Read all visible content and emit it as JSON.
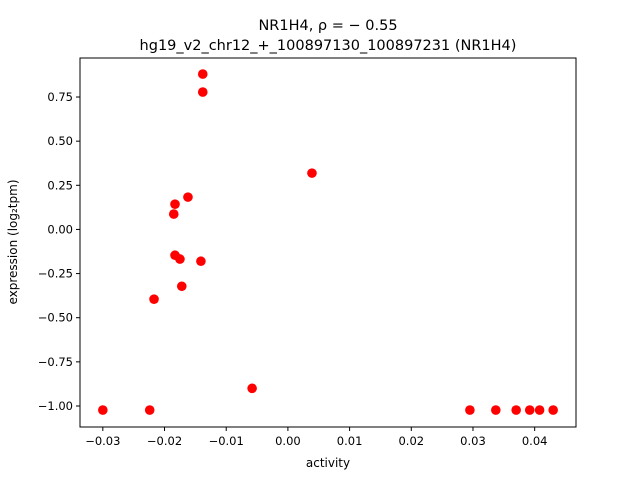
{
  "chart_data": {
    "type": "scatter",
    "title_line1": "NR1H4, ρ = − 0.55",
    "title_line2": "hg19_v2_chr12_+_100897130_100897231 (NR1H4)",
    "xlabel": "activity",
    "ylabel": "expression (log₂tpm)",
    "xlim": [
      -0.0337,
      0.0467
    ],
    "ylim": [
      -1.119,
      0.971
    ],
    "xticks": [
      -0.03,
      -0.02,
      -0.01,
      0.0,
      0.01,
      0.02,
      0.03,
      0.04
    ],
    "xtick_labels": [
      "−0.03",
      "−0.02",
      "−0.01",
      "0.00",
      "0.01",
      "0.02",
      "0.03",
      "0.04"
    ],
    "yticks": [
      -1.0,
      -0.75,
      -0.5,
      -0.25,
      0.0,
      0.25,
      0.5,
      0.75
    ],
    "ytick_labels": [
      "−1.00",
      "−0.75",
      "−0.50",
      "−0.25",
      "0.00",
      "0.25",
      "0.50",
      "0.75"
    ],
    "marker_color": "#ff0000",
    "grid": false,
    "points": [
      {
        "x": -0.03,
        "y": -1.023
      },
      {
        "x": -0.0224,
        "y": -1.023
      },
      {
        "x": -0.0217,
        "y": -0.395
      },
      {
        "x": -0.0185,
        "y": 0.087
      },
      {
        "x": -0.0183,
        "y": 0.143
      },
      {
        "x": -0.0183,
        "y": -0.146
      },
      {
        "x": -0.0175,
        "y": -0.168
      },
      {
        "x": -0.0172,
        "y": -0.322
      },
      {
        "x": -0.0162,
        "y": 0.183
      },
      {
        "x": -0.0141,
        "y": -0.18
      },
      {
        "x": -0.0138,
        "y": 0.88
      },
      {
        "x": -0.0138,
        "y": 0.778
      },
      {
        "x": -0.0058,
        "y": -0.9
      },
      {
        "x": 0.0039,
        "y": 0.319
      },
      {
        "x": 0.0295,
        "y": -1.023
      },
      {
        "x": 0.0337,
        "y": -1.023
      },
      {
        "x": 0.037,
        "y": -1.023
      },
      {
        "x": 0.0392,
        "y": -1.023
      },
      {
        "x": 0.0408,
        "y": -1.023
      },
      {
        "x": 0.043,
        "y": -1.023
      }
    ]
  }
}
